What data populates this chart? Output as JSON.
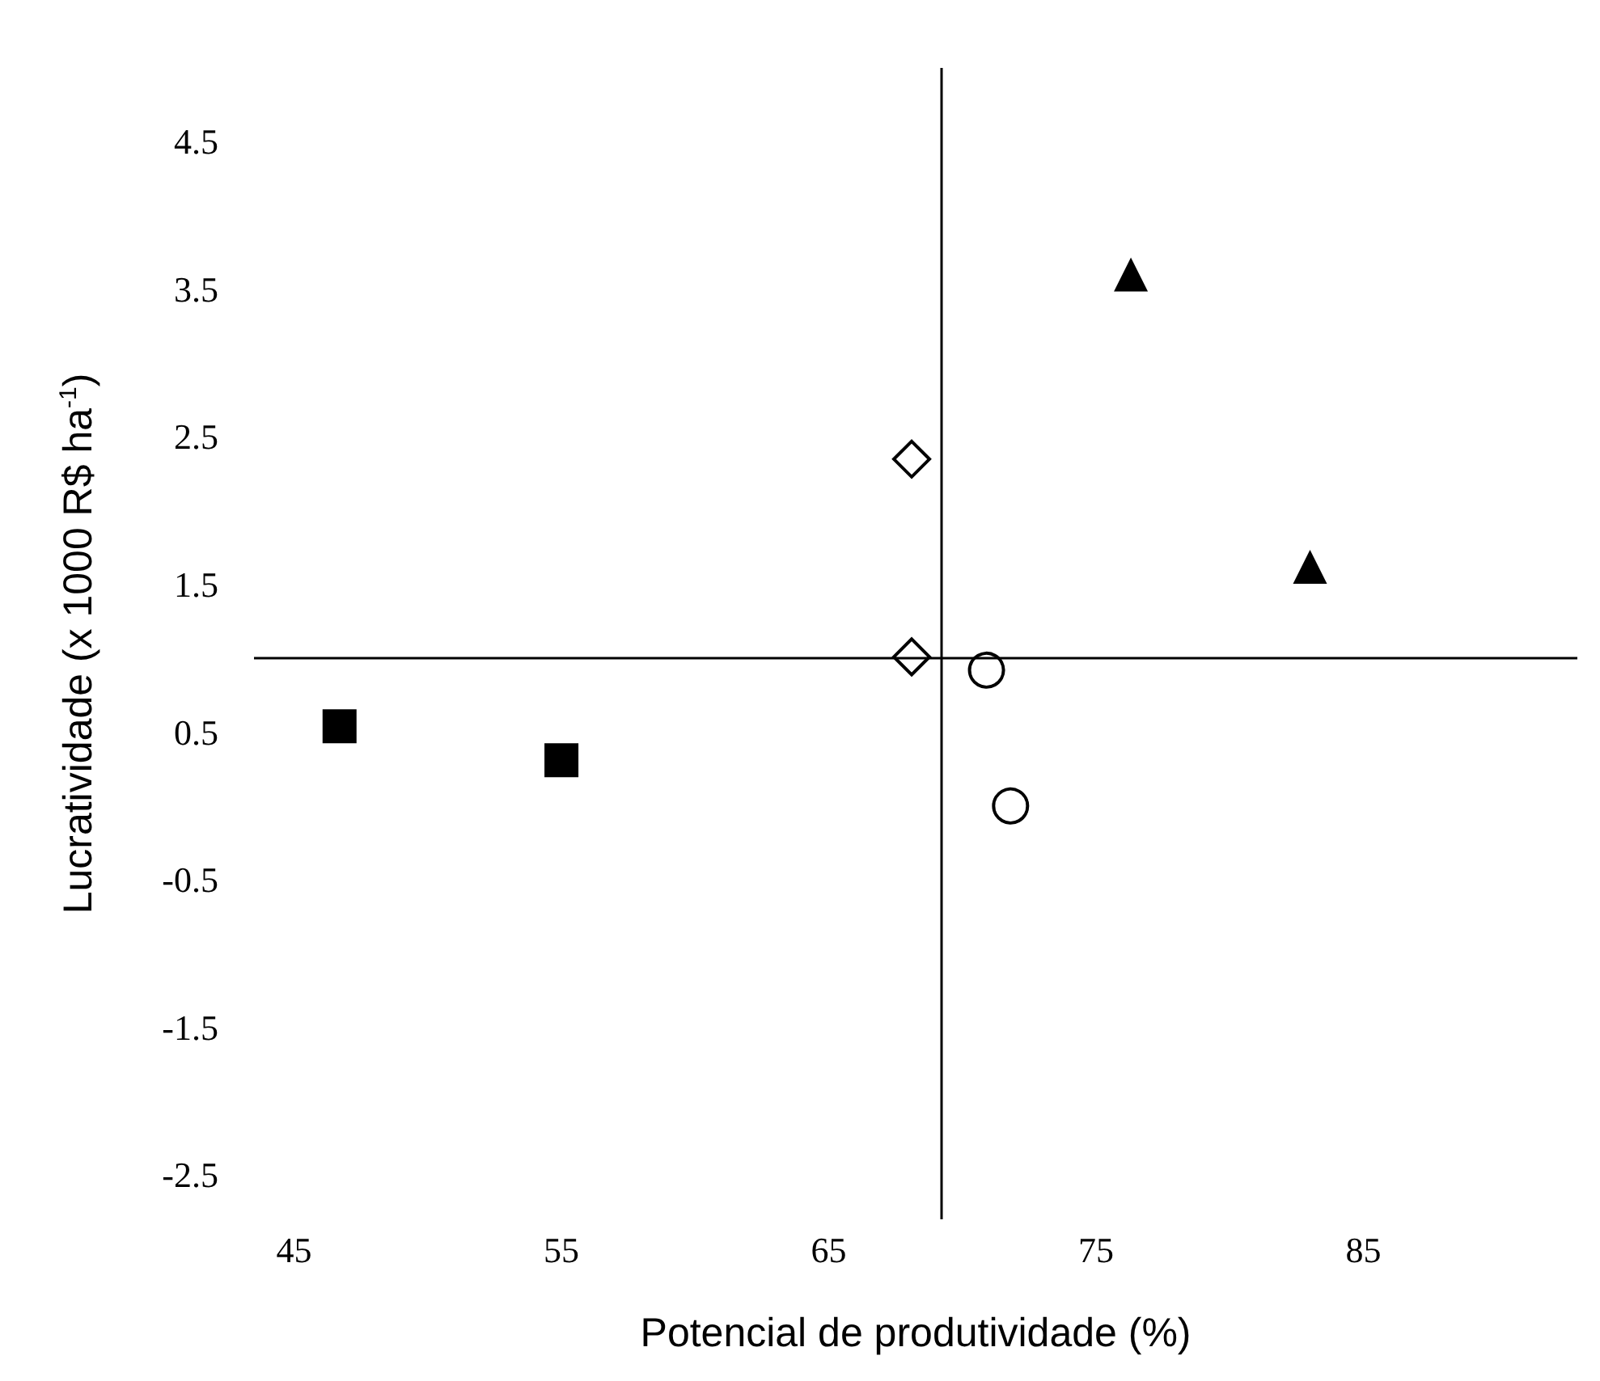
{
  "chart_data": {
    "type": "scatter",
    "xlabel": "Potencial de produtividade (%)",
    "ylabel": "Lucratividade (x 1000 R$ ha$^{-1}$)",
    "series": [
      {
        "color": "#000000",
        "marker": "square",
        "x": [
          46.7,
          55.0
        ],
        "values": [
          0.54,
          0.31
        ]
      },
      {
        "color": "#000000",
        "marker": "diamond",
        "x": [
          68.1,
          68.1
        ],
        "values": [
          2.35,
          1.01
        ]
      },
      {
        "color": "#000000",
        "marker": "circle",
        "x": [
          70.9,
          71.8
        ],
        "values": [
          0.92,
          0.0
        ]
      },
      {
        "color": "#000000",
        "marker": "triangle",
        "x": [
          76.3,
          83.0
        ],
        "values": [
          3.6,
          1.62
        ]
      }
    ],
    "ref_lines": [
      {
        "axis": "y",
        "value": 1.0,
        "color": "#000000"
      },
      {
        "axis": "x",
        "value": 69.2,
        "color": "#000000"
      }
    ],
    "xlim": [
      43.5,
      93
    ],
    "xticks": [
      45,
      55,
      65,
      75,
      85
    ],
    "ylim": [
      -2.8,
      5.0
    ],
    "yticks": [
      -2.5,
      -1.5,
      -0.5,
      0.5,
      1.5,
      2.5,
      3.5,
      4.5
    ],
    "grid": false
  }
}
